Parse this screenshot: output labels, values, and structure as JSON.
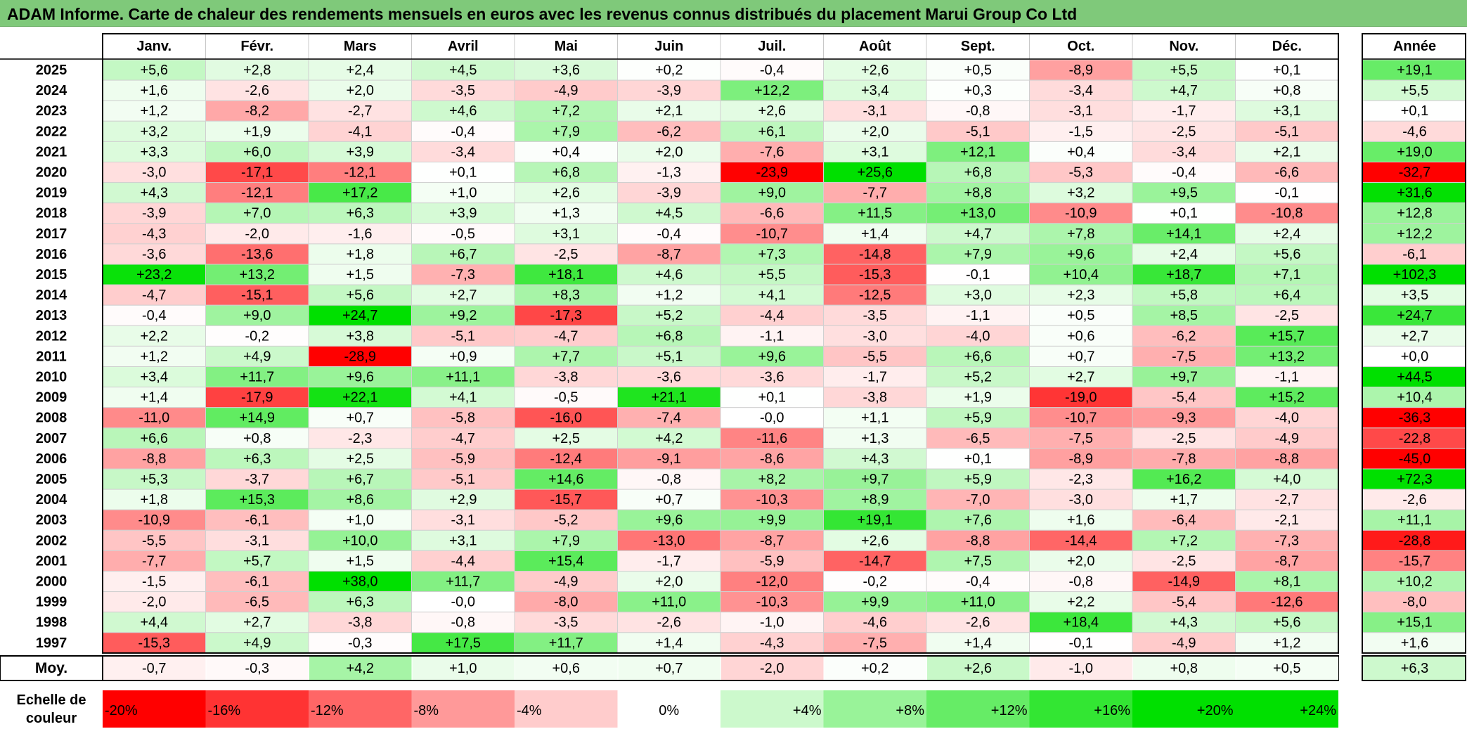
{
  "title": "ADAM Informe. Carte de chaleur des rendements mensuels en euros avec les revenus connus distribués du placement Marui Group Co Ltd",
  "chart_data": {
    "type": "heatmap",
    "months": [
      "Janv.",
      "Févr.",
      "Mars",
      "Avril",
      "Mai",
      "Juin",
      "Juil.",
      "Août",
      "Sept.",
      "Oct.",
      "Nov.",
      "Déc."
    ],
    "year_header": "Année",
    "rows": [
      {
        "year": "2025",
        "values": [
          "+5,6",
          "+2,8",
          "+2,4",
          "+4,5",
          "+3,6",
          "+0,2",
          "-0,4",
          "+2,6",
          "+0,5",
          "-8,9",
          "+5,5",
          "+0,1"
        ],
        "annual": "+19,1"
      },
      {
        "year": "2024",
        "values": [
          "+1,6",
          "-2,6",
          "+2,0",
          "-3,5",
          "-4,9",
          "-3,9",
          "+12,2",
          "+3,4",
          "+0,3",
          "-3,4",
          "+4,7",
          "+0,8"
        ],
        "annual": "+5,5"
      },
      {
        "year": "2023",
        "values": [
          "+1,2",
          "-8,2",
          "-2,7",
          "+4,6",
          "+7,2",
          "+2,1",
          "+2,6",
          "-3,1",
          "-0,8",
          "-3,1",
          "-1,7",
          "+3,1"
        ],
        "annual": "+0,1"
      },
      {
        "year": "2022",
        "values": [
          "+3,2",
          "+1,9",
          "-4,1",
          "-0,4",
          "+7,9",
          "-6,2",
          "+6,1",
          "+2,0",
          "-5,1",
          "-1,5",
          "-2,5",
          "-5,1"
        ],
        "annual": "-4,6"
      },
      {
        "year": "2021",
        "values": [
          "+3,3",
          "+6,0",
          "+3,9",
          "-3,4",
          "+0,4",
          "+2,0",
          "-7,6",
          "+3,1",
          "+12,1",
          "+0,4",
          "-3,4",
          "+2,1"
        ],
        "annual": "+19,0"
      },
      {
        "year": "2020",
        "values": [
          "-3,0",
          "-17,1",
          "-12,1",
          "+0,1",
          "+6,8",
          "-1,3",
          "-23,9",
          "+25,6",
          "+6,8",
          "-5,3",
          "-0,4",
          "-6,6"
        ],
        "annual": "-32,7"
      },
      {
        "year": "2019",
        "values": [
          "+4,3",
          "-12,1",
          "+17,2",
          "+1,0",
          "+2,6",
          "-3,9",
          "+9,0",
          "-7,7",
          "+8,8",
          "+3,2",
          "+9,5",
          "-0,1"
        ],
        "annual": "+31,6"
      },
      {
        "year": "2018",
        "values": [
          "-3,9",
          "+7,0",
          "+6,3",
          "+3,9",
          "+1,3",
          "+4,5",
          "-6,6",
          "+11,5",
          "+13,0",
          "-10,9",
          "+0,1",
          "-10,8"
        ],
        "annual": "+12,8"
      },
      {
        "year": "2017",
        "values": [
          "-4,3",
          "-2,0",
          "-1,6",
          "-0,5",
          "+3,1",
          "-0,4",
          "-10,7",
          "+1,4",
          "+4,7",
          "+7,8",
          "+14,1",
          "+2,4"
        ],
        "annual": "+12,2"
      },
      {
        "year": "2016",
        "values": [
          "-3,6",
          "-13,6",
          "+1,8",
          "+6,7",
          "-2,5",
          "-8,7",
          "+7,3",
          "-14,8",
          "+7,9",
          "+9,6",
          "+2,4",
          "+5,6"
        ],
        "annual": "-6,1"
      },
      {
        "year": "2015",
        "values": [
          "+23,2",
          "+13,2",
          "+1,5",
          "-7,3",
          "+18,1",
          "+4,6",
          "+5,5",
          "-15,3",
          "-0,1",
          "+10,4",
          "+18,7",
          "+7,1"
        ],
        "annual": "+102,3"
      },
      {
        "year": "2014",
        "values": [
          "-4,7",
          "-15,1",
          "+5,6",
          "+2,7",
          "+8,3",
          "+1,2",
          "+4,1",
          "-12,5",
          "+3,0",
          "+2,3",
          "+5,8",
          "+6,4"
        ],
        "annual": "+3,5"
      },
      {
        "year": "2013",
        "values": [
          "-0,4",
          "+9,0",
          "+24,7",
          "+9,2",
          "-17,3",
          "+5,2",
          "-4,4",
          "-3,5",
          "-1,1",
          "+0,5",
          "+8,5",
          "-2,5"
        ],
        "annual": "+24,7"
      },
      {
        "year": "2012",
        "values": [
          "+2,2",
          "-0,2",
          "+3,8",
          "-5,1",
          "-4,7",
          "+6,8",
          "-1,1",
          "-3,0",
          "-4,0",
          "+0,6",
          "-6,2",
          "+15,7"
        ],
        "annual": "+2,7"
      },
      {
        "year": "2011",
        "values": [
          "+1,2",
          "+4,9",
          "-28,9",
          "+0,9",
          "+7,7",
          "+5,1",
          "+9,6",
          "-5,5",
          "+6,6",
          "+0,7",
          "-7,5",
          "+13,2"
        ],
        "annual": "+0,0"
      },
      {
        "year": "2010",
        "values": [
          "+3,4",
          "+11,7",
          "+9,6",
          "+11,1",
          "-3,8",
          "-3,6",
          "-3,6",
          "-1,7",
          "+5,2",
          "+2,7",
          "+9,7",
          "-1,1"
        ],
        "annual": "+44,5"
      },
      {
        "year": "2009",
        "values": [
          "+1,4",
          "-17,9",
          "+22,1",
          "+4,1",
          "-0,5",
          "+21,1",
          "+0,1",
          "-3,8",
          "+1,9",
          "-19,0",
          "-5,4",
          "+15,2"
        ],
        "annual": "+10,4"
      },
      {
        "year": "2008",
        "values": [
          "-11,0",
          "+14,9",
          "+0,7",
          "-5,8",
          "-16,0",
          "-7,4",
          "-0,0",
          "+1,1",
          "+5,9",
          "-10,7",
          "-9,3",
          "-4,0"
        ],
        "annual": "-36,3"
      },
      {
        "year": "2007",
        "values": [
          "+6,6",
          "+0,8",
          "-2,3",
          "-4,7",
          "+2,5",
          "+4,2",
          "-11,6",
          "+1,3",
          "-6,5",
          "-7,5",
          "-2,5",
          "-4,9"
        ],
        "annual": "-22,8"
      },
      {
        "year": "2006",
        "values": [
          "-8,8",
          "+6,3",
          "+2,5",
          "-5,9",
          "-12,4",
          "-9,1",
          "-8,6",
          "+4,3",
          "+0,1",
          "-8,9",
          "-7,8",
          "-8,8"
        ],
        "annual": "-45,0"
      },
      {
        "year": "2005",
        "values": [
          "+5,3",
          "-3,7",
          "+6,7",
          "-5,1",
          "+14,6",
          "-0,8",
          "+8,2",
          "+9,7",
          "+5,9",
          "-2,3",
          "+16,2",
          "+4,0"
        ],
        "annual": "+72,3"
      },
      {
        "year": "2004",
        "values": [
          "+1,8",
          "+15,3",
          "+8,6",
          "+2,9",
          "-15,7",
          "+0,7",
          "-10,3",
          "+8,9",
          "-7,0",
          "-3,0",
          "+1,7",
          "-2,7"
        ],
        "annual": "-2,6"
      },
      {
        "year": "2003",
        "values": [
          "-10,9",
          "-6,1",
          "+1,0",
          "-3,1",
          "-5,2",
          "+9,6",
          "+9,9",
          "+19,1",
          "+7,6",
          "+1,6",
          "-6,4",
          "-2,1"
        ],
        "annual": "+11,1"
      },
      {
        "year": "2002",
        "values": [
          "-5,5",
          "-3,1",
          "+10,0",
          "+3,1",
          "+7,9",
          "-13,0",
          "-8,7",
          "+2,6",
          "-8,8",
          "-14,4",
          "+7,2",
          "-7,3"
        ],
        "annual": "-28,8"
      },
      {
        "year": "2001",
        "values": [
          "-7,7",
          "+5,7",
          "+1,5",
          "-4,4",
          "+15,4",
          "-1,7",
          "-5,9",
          "-14,7",
          "+7,5",
          "+2,0",
          "-2,5",
          "-8,7"
        ],
        "annual": "-15,7"
      },
      {
        "year": "2000",
        "values": [
          "-1,5",
          "-6,1",
          "+38,0",
          "+11,7",
          "-4,9",
          "+2,0",
          "-12,0",
          "-0,2",
          "-0,4",
          "-0,8",
          "-14,9",
          "+8,1"
        ],
        "annual": "+10,2"
      },
      {
        "year": "1999",
        "values": [
          "-2,0",
          "-6,5",
          "+6,3",
          "-0,0",
          "-8,0",
          "+11,0",
          "-10,3",
          "+9,9",
          "+11,0",
          "+2,2",
          "-5,4",
          "-12,6"
        ],
        "annual": "-8,0"
      },
      {
        "year": "1998",
        "values": [
          "+4,4",
          "+2,7",
          "-3,8",
          "-0,8",
          "-3,5",
          "-2,6",
          "-1,0",
          "-4,6",
          "-2,6",
          "+18,4",
          "+4,3",
          "+5,6"
        ],
        "annual": "+15,1"
      },
      {
        "year": "1997",
        "values": [
          "-15,3",
          "+4,9",
          "-0,3",
          "+17,5",
          "+11,7",
          "+1,4",
          "-4,3",
          "-7,5",
          "+1,4",
          "-0,1",
          "-4,9",
          "+1,2"
        ],
        "annual": "+1,6"
      }
    ],
    "average": {
      "label": "Moy.",
      "values": [
        "-0,7",
        "-0,3",
        "+4,2",
        "+1,0",
        "+0,6",
        "+0,7",
        "-2,0",
        "+0,2",
        "+2,6",
        "-1,0",
        "+0,8",
        "+0,5"
      ],
      "annual": "+6,3"
    },
    "color_scale": {
      "label": [
        "Echelle de",
        "couleur"
      ],
      "steps": [
        "-20%",
        "-16%",
        "-12%",
        "-8%",
        "-4%",
        "0%",
        "+4%",
        "+8%",
        "+12%",
        "+16%",
        "+20%",
        "+24%"
      ],
      "colors": {
        "negative": "#ff0000",
        "neutral": "#ffffff",
        "positive": "#00e000"
      }
    }
  }
}
